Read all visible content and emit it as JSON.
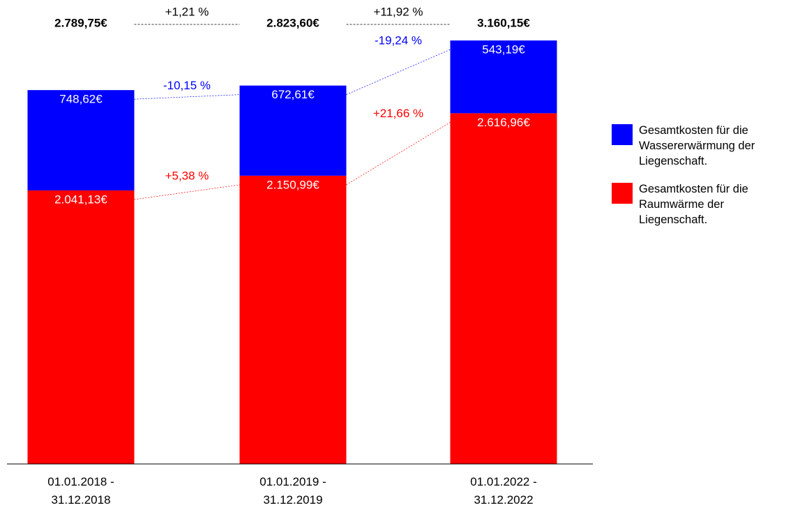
{
  "chart_data": {
    "type": "stacked_bar",
    "categories": [
      "01.01.2018 - 31.12.2018",
      "01.01.2019 - 31.12.2019",
      "01.01.2022 - 31.12.2022"
    ],
    "series": [
      {
        "name": "Gesamtkosten für die Raumwärme der Liegenschaft.",
        "color": "#ff0000",
        "values": [
          2041.13,
          2150.99,
          2616.96
        ],
        "value_labels": [
          "2.041,13€",
          "2.150,99€",
          "2.616,96€"
        ],
        "change_values": [
          5.38,
          21.66
        ],
        "change_labels": [
          "+5,38 %",
          "+21,66 %"
        ]
      },
      {
        "name": "Gesamtkosten für die Wassererwärmung der Liegenschaft.",
        "color": "#0000ff",
        "values": [
          748.62,
          672.61,
          543.19
        ],
        "value_labels": [
          "748,62€",
          "672,61€",
          "543,19€"
        ],
        "change_values": [
          -10.15,
          -19.24
        ],
        "change_labels": [
          "-10,15 %",
          "-19,24 %"
        ]
      }
    ],
    "totals": [
      2789.75,
      2823.6,
      3160.15
    ],
    "total_labels": [
      "2.789,75€",
      "2.823,60€",
      "3.160,15€"
    ],
    "total_change_values": [
      1.21,
      11.92
    ],
    "total_change_labels": [
      "+1,21 %",
      "+11,92 %"
    ],
    "legend": "right"
  }
}
